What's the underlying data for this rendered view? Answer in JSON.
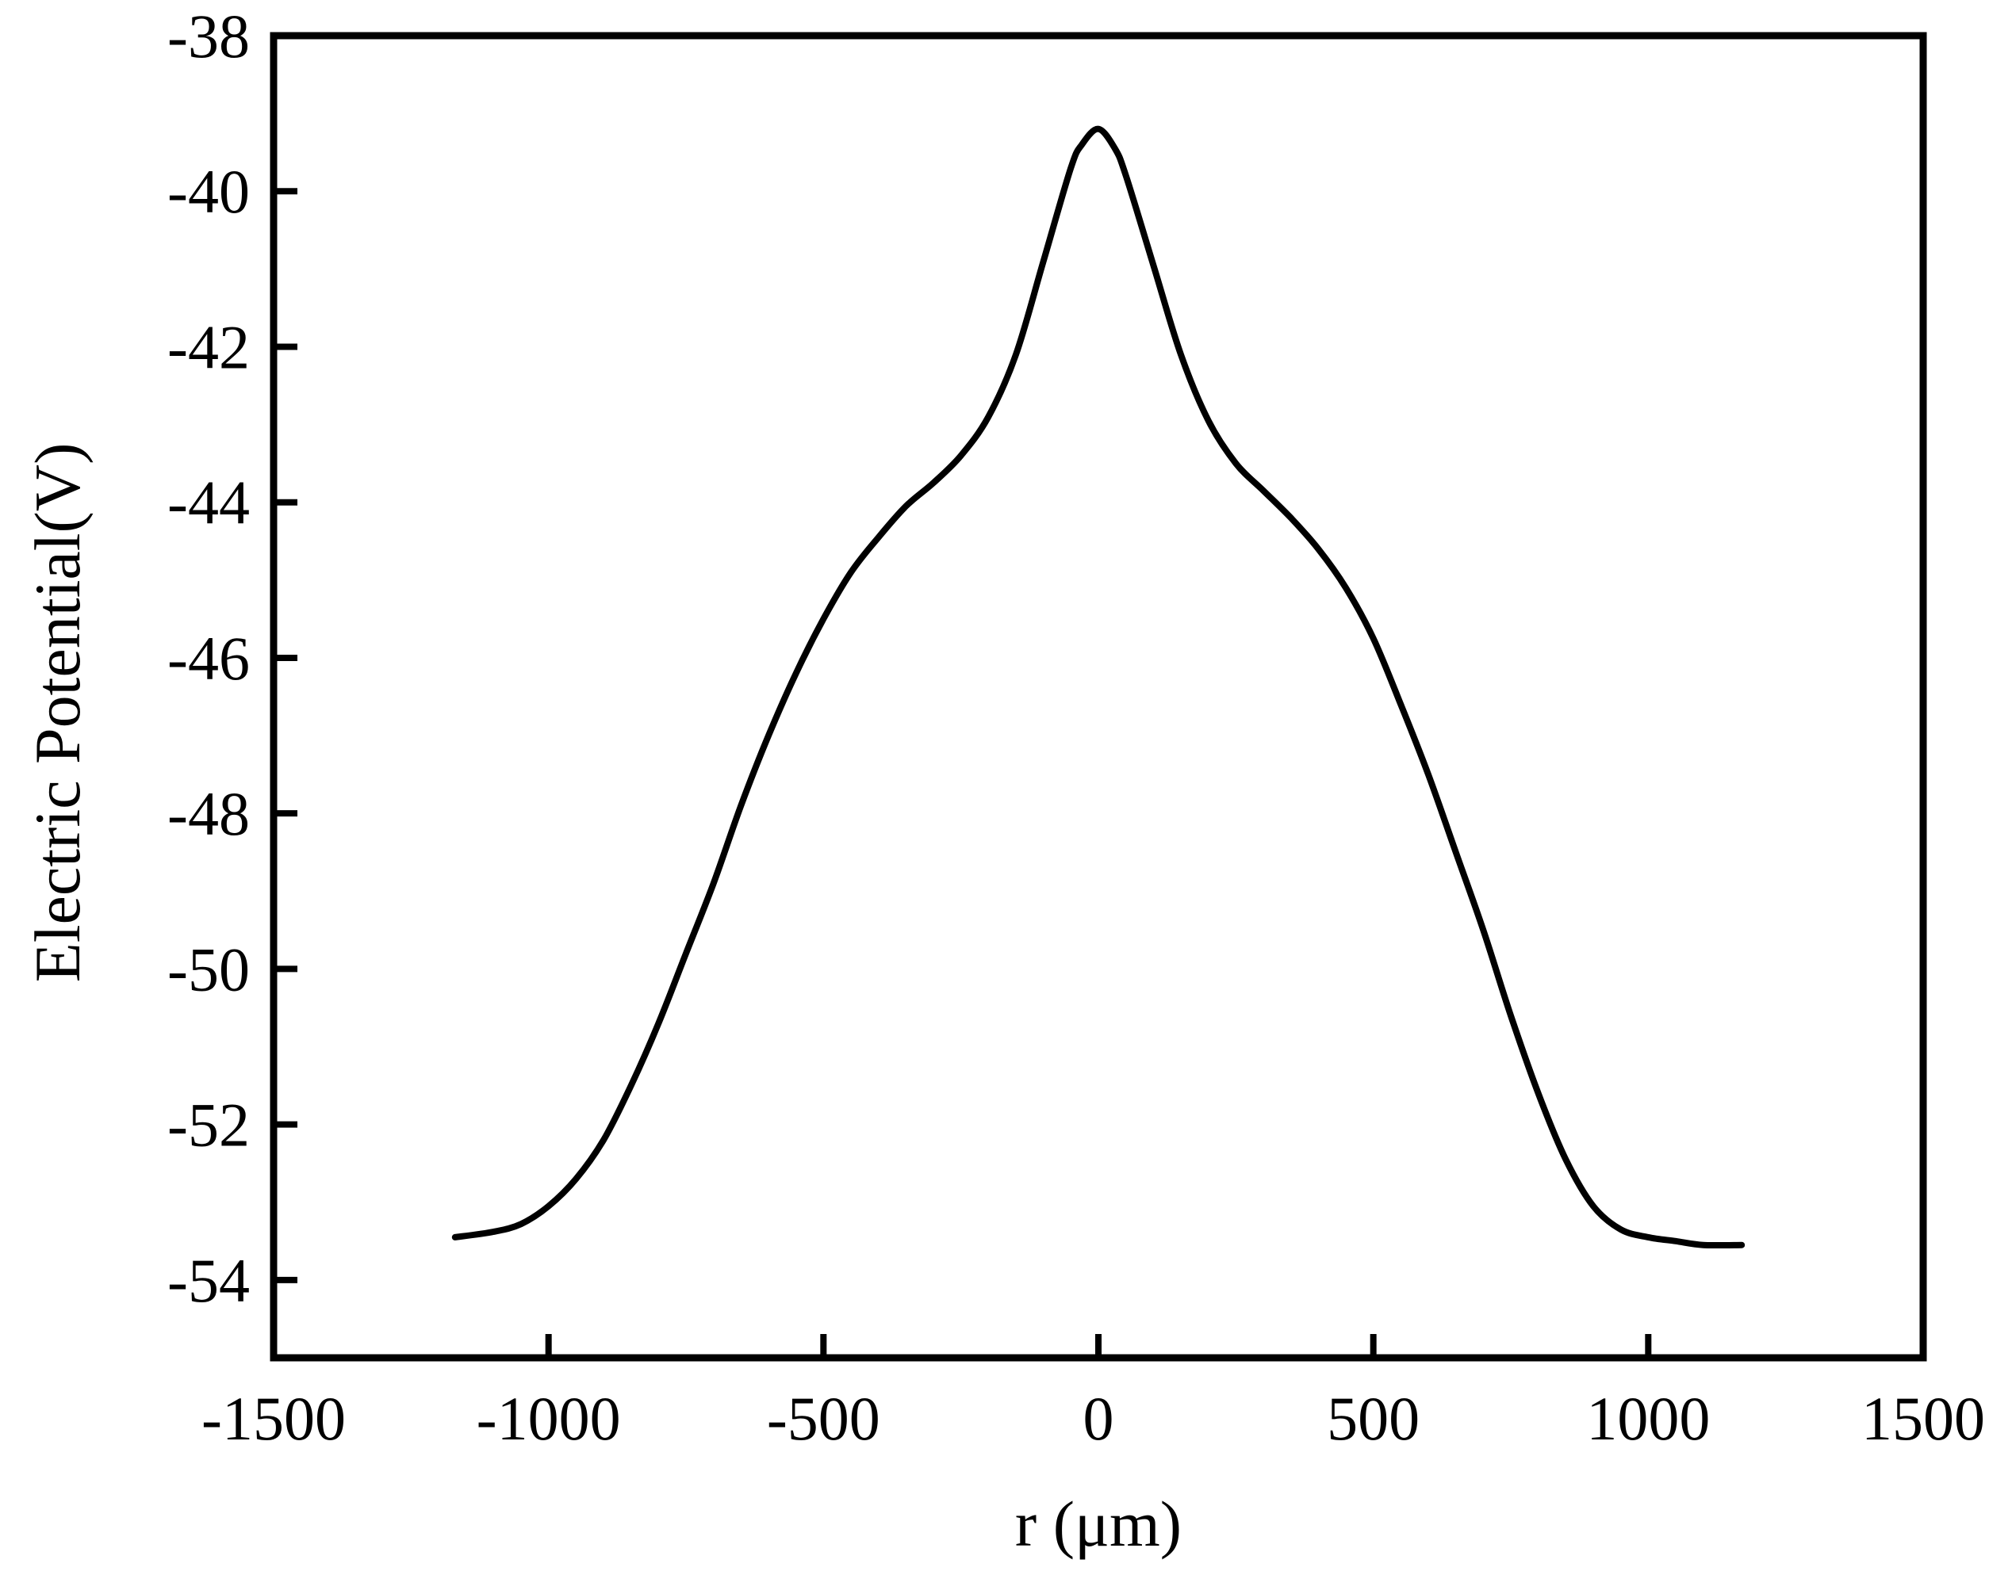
{
  "chart_data": {
    "type": "line",
    "title": "",
    "xlabel": "r (μm)",
    "ylabel": "Electric Potential(V)",
    "xlim": [
      -1500,
      1500
    ],
    "ylim": [
      -55,
      -38
    ],
    "xticks": [
      -1500,
      -1000,
      -500,
      0,
      500,
      1000,
      1500
    ],
    "yticks": [
      -38,
      -40,
      -42,
      -44,
      -46,
      -48,
      -50,
      -52,
      -54
    ],
    "grid": false,
    "legend": "none",
    "line_color": "#000000",
    "series": [
      {
        "x": [
          -1170,
          -1100,
          -1050,
          -1000,
          -950,
          -900,
          -850,
          -800,
          -750,
          -700,
          -650,
          -600,
          -550,
          -500,
          -450,
          -400,
          -350,
          -300,
          -250,
          -200,
          -150,
          -100,
          -50,
          -30,
          0,
          30,
          50,
          100,
          150,
          200,
          250,
          300,
          350,
          400,
          450,
          500,
          550,
          600,
          650,
          700,
          750,
          800,
          850,
          900,
          950,
          1000,
          1050,
          1100,
          1170
        ],
        "y": [
          -53.45,
          -53.38,
          -53.28,
          -53.05,
          -52.7,
          -52.2,
          -51.5,
          -50.7,
          -49.8,
          -48.9,
          -47.9,
          -47.0,
          -46.2,
          -45.5,
          -44.9,
          -44.45,
          -44.05,
          -43.75,
          -43.4,
          -42.9,
          -42.1,
          -40.9,
          -39.7,
          -39.4,
          -39.2,
          -39.45,
          -39.8,
          -40.95,
          -42.1,
          -42.95,
          -43.5,
          -43.85,
          -44.2,
          -44.6,
          -45.1,
          -45.75,
          -46.6,
          -47.5,
          -48.5,
          -49.5,
          -50.6,
          -51.6,
          -52.45,
          -53.05,
          -53.35,
          -53.45,
          -53.5,
          -53.55,
          -53.55
        ]
      }
    ]
  }
}
